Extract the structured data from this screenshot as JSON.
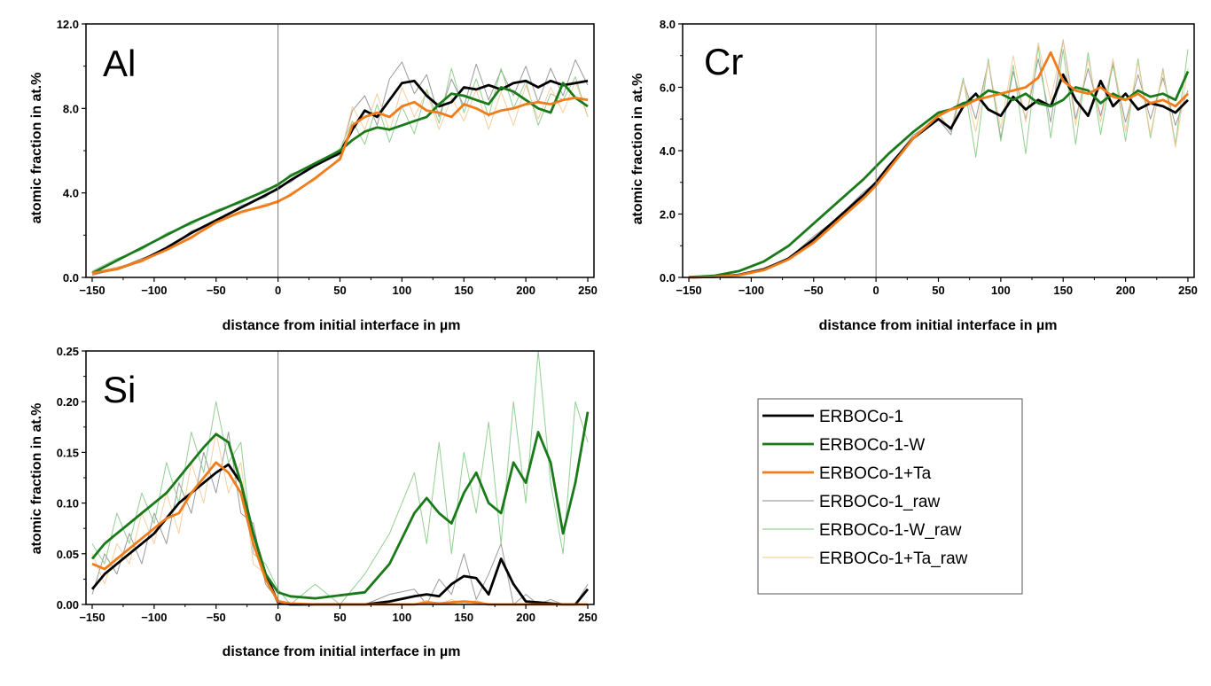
{
  "colors": {
    "ERBOCo-1": "#000000",
    "ERBOCo-1-W": "#1a7a1a",
    "ERBOCo-1+Ta": "#f07c1a",
    "ERBOCo-1_raw": "#888888",
    "ERBOCo-1-W_raw": "#7fc77f",
    "ERBOCo-1+Ta_raw": "#f7c690"
  },
  "legend": {
    "placement": "right-middle",
    "entries": [
      "ERBOCo-1",
      "ERBOCo-1-W",
      "ERBOCo-1+Ta",
      "ERBOCo-1_raw",
      "ERBOCo-1-W_raw",
      "ERBOCo-1+Ta_raw"
    ]
  },
  "chart_data": [
    {
      "type": "line",
      "title": "Al",
      "xlabel": "distance from initial interface in µm",
      "ylabel": "atomic fraction in at.%",
      "xlim": [
        -155,
        255
      ],
      "ylim": [
        0,
        12
      ],
      "x_ticks": [
        "−150",
        "−100",
        "−50",
        "0",
        "50",
        "100",
        "150",
        "200",
        "250"
      ],
      "x_tick_values": [
        -150,
        -100,
        -50,
        0,
        50,
        100,
        150,
        200,
        250
      ],
      "y_ticks": [
        "0.0",
        "4.0",
        "8.0",
        "12.0"
      ],
      "y_tick_values": [
        0,
        4,
        8,
        12
      ],
      "reference_line_x": 0,
      "grid": false,
      "x": [
        -150,
        -130,
        -110,
        -90,
        -70,
        -50,
        -30,
        -10,
        0,
        10,
        30,
        50,
        60,
        70,
        80,
        90,
        100,
        110,
        120,
        130,
        140,
        150,
        160,
        170,
        180,
        190,
        200,
        210,
        220,
        230,
        240,
        250
      ],
      "series": [
        {
          "name": "ERBOCo-1",
          "values": [
            0.2,
            0.4,
            0.8,
            1.4,
            2.1,
            2.7,
            3.3,
            3.9,
            4.2,
            4.6,
            5.3,
            5.9,
            7.0,
            7.9,
            7.6,
            8.4,
            9.2,
            9.3,
            8.6,
            8.1,
            8.3,
            9.0,
            8.9,
            9.1,
            8.9,
            9.2,
            9.3,
            9.0,
            9.3,
            9.1,
            9.2,
            9.3
          ]
        },
        {
          "name": "ERBOCo-1-W",
          "values": [
            0.2,
            0.8,
            1.4,
            2.0,
            2.6,
            3.1,
            3.6,
            4.1,
            4.4,
            4.8,
            5.4,
            6.0,
            6.5,
            6.9,
            7.1,
            7.0,
            7.2,
            7.4,
            7.6,
            8.2,
            8.7,
            8.6,
            8.4,
            8.2,
            9.0,
            8.8,
            8.4,
            8.0,
            7.8,
            9.2,
            8.5,
            8.1
          ]
        },
        {
          "name": "ERBOCo-1+Ta",
          "values": [
            0.2,
            0.4,
            0.8,
            1.3,
            1.9,
            2.6,
            3.1,
            3.4,
            3.6,
            3.9,
            4.7,
            5.6,
            7.2,
            7.6,
            7.8,
            7.6,
            8.1,
            8.3,
            7.9,
            7.8,
            7.6,
            8.2,
            8.0,
            7.7,
            7.9,
            8.0,
            8.2,
            8.3,
            8.2,
            8.4,
            8.5,
            8.4
          ]
        },
        {
          "name": "ERBOCo-1_raw",
          "values": [
            0.1,
            0.4,
            0.9,
            1.3,
            2.2,
            2.6,
            3.4,
            3.8,
            4.3,
            4.5,
            5.4,
            5.8,
            7.9,
            8.6,
            7.2,
            9.4,
            10.2,
            8.7,
            9.6,
            7.6,
            9.4,
            8.1,
            10.1,
            8.4,
            9.8,
            8.6,
            10.0,
            8.3,
            9.9,
            8.6,
            10.3,
            9.1
          ]
        },
        {
          "name": "ERBOCo-1-W_raw",
          "values": [
            0.3,
            0.9,
            1.3,
            2.1,
            2.5,
            3.2,
            3.5,
            4.2,
            4.3,
            4.9,
            5.3,
            6.1,
            7.4,
            6.3,
            8.2,
            6.4,
            8.1,
            6.8,
            8.9,
            7.3,
            9.9,
            7.8,
            9.4,
            7.6,
            9.9,
            8.0,
            9.3,
            7.2,
            8.7,
            8.4,
            9.5,
            7.6
          ]
        },
        {
          "name": "ERBOCo-1+Ta_raw",
          "values": [
            0.2,
            0.5,
            0.7,
            1.4,
            1.8,
            2.7,
            3.0,
            3.5,
            3.5,
            4.0,
            4.6,
            5.7,
            8.1,
            7.0,
            8.7,
            6.9,
            9.0,
            7.6,
            8.8,
            7.0,
            8.5,
            7.4,
            8.9,
            7.0,
            8.8,
            7.2,
            9.1,
            7.5,
            9.0,
            7.8,
            9.3,
            7.6
          ]
        }
      ]
    },
    {
      "type": "line",
      "title": "Cr",
      "xlabel": "distance from initial interface in µm",
      "ylabel": "atomic fraction in at.%",
      "xlim": [
        -155,
        255
      ],
      "ylim": [
        0,
        8
      ],
      "x_ticks": [
        "−150",
        "−100",
        "−50",
        "0",
        "50",
        "100",
        "150",
        "200",
        "250"
      ],
      "x_tick_values": [
        -150,
        -100,
        -50,
        0,
        50,
        100,
        150,
        200,
        250
      ],
      "y_ticks": [
        "0.0",
        "2.0",
        "4.0",
        "6.0",
        "8.0"
      ],
      "y_tick_values": [
        0,
        2,
        4,
        6,
        8
      ],
      "reference_line_x": 0,
      "grid": false,
      "x": [
        -150,
        -130,
        -110,
        -90,
        -70,
        -50,
        -30,
        -10,
        0,
        10,
        30,
        50,
        60,
        70,
        80,
        90,
        100,
        110,
        120,
        130,
        140,
        150,
        160,
        170,
        180,
        190,
        200,
        210,
        220,
        230,
        240,
        250
      ],
      "series": [
        {
          "name": "ERBOCo-1",
          "values": [
            0.0,
            0.02,
            0.08,
            0.25,
            0.6,
            1.2,
            1.9,
            2.6,
            3.0,
            3.5,
            4.4,
            5.0,
            4.7,
            5.4,
            5.8,
            5.3,
            5.1,
            5.7,
            5.3,
            5.6,
            5.4,
            6.4,
            5.6,
            5.1,
            6.2,
            5.4,
            5.8,
            5.3,
            5.5,
            5.4,
            5.2,
            5.6
          ]
        },
        {
          "name": "ERBOCo-1-W",
          "values": [
            0.01,
            0.05,
            0.2,
            0.5,
            1.0,
            1.7,
            2.4,
            3.1,
            3.5,
            3.9,
            4.6,
            5.2,
            5.3,
            5.5,
            5.6,
            5.9,
            5.8,
            5.6,
            5.8,
            5.5,
            5.4,
            5.6,
            6.0,
            5.9,
            5.5,
            5.8,
            5.6,
            5.9,
            5.7,
            5.8,
            5.6,
            6.5
          ]
        },
        {
          "name": "ERBOCo-1+Ta",
          "values": [
            0.0,
            0.02,
            0.07,
            0.23,
            0.57,
            1.1,
            1.8,
            2.5,
            2.9,
            3.4,
            4.4,
            5.1,
            5.3,
            5.4,
            5.6,
            5.7,
            5.8,
            5.9,
            6.0,
            6.3,
            7.1,
            6.2,
            5.9,
            5.8,
            6.0,
            5.7,
            5.6,
            5.8,
            5.5,
            5.6,
            5.4,
            5.8
          ]
        },
        {
          "name": "ERBOCo-1_raw",
          "values": [
            0.0,
            0.03,
            0.1,
            0.3,
            0.6,
            1.3,
            1.9,
            2.7,
            3.0,
            3.5,
            4.5,
            5.0,
            4.5,
            6.2,
            5.0,
            6.8,
            4.4,
            6.5,
            5.0,
            6.9,
            4.9,
            7.5,
            5.0,
            6.6,
            5.1,
            6.7,
            4.9,
            6.4,
            5.0,
            6.3,
            4.8,
            5.9
          ]
        },
        {
          "name": "ERBOCo-1-W_raw",
          "values": [
            0.01,
            0.06,
            0.2,
            0.5,
            1.0,
            1.7,
            2.4,
            3.1,
            3.5,
            3.9,
            4.6,
            5.2,
            4.6,
            6.3,
            3.8,
            6.9,
            4.3,
            6.7,
            3.9,
            7.3,
            4.4,
            7.2,
            4.2,
            7.1,
            4.5,
            6.8,
            4.3,
            6.9,
            4.4,
            6.6,
            4.2,
            7.2
          ]
        },
        {
          "name": "ERBOCo-1+Ta_raw",
          "values": [
            0.0,
            0.02,
            0.07,
            0.23,
            0.57,
            1.1,
            1.8,
            2.5,
            2.9,
            3.4,
            4.4,
            5.1,
            4.7,
            6.2,
            4.6,
            6.8,
            4.7,
            7.0,
            4.9,
            7.4,
            5.6,
            7.5,
            4.8,
            6.9,
            4.9,
            6.9,
            4.6,
            6.8,
            4.5,
            6.5,
            4.1,
            6.6
          ]
        }
      ]
    },
    {
      "type": "line",
      "title": "Si",
      "xlabel": "distance from initial interface in µm",
      "ylabel": "atomic fraction in at.%",
      "xlim": [
        -155,
        255
      ],
      "ylim": [
        0,
        0.25
      ],
      "x_ticks": [
        "−150",
        "−100",
        "−50",
        "0",
        "50",
        "100",
        "150",
        "200",
        "250"
      ],
      "x_tick_values": [
        -150,
        -100,
        -50,
        0,
        50,
        100,
        150,
        200,
        250
      ],
      "y_ticks": [
        "0.00",
        "0.05",
        "0.10",
        "0.15",
        "0.20",
        "0.25"
      ],
      "y_tick_values": [
        0,
        0.05,
        0.1,
        0.15,
        0.2,
        0.25
      ],
      "reference_line_x": 0,
      "grid": false,
      "x": [
        -150,
        -140,
        -130,
        -120,
        -110,
        -100,
        -90,
        -80,
        -70,
        -60,
        -50,
        -40,
        -30,
        -20,
        -10,
        0,
        10,
        30,
        50,
        70,
        90,
        110,
        120,
        130,
        140,
        150,
        160,
        170,
        180,
        190,
        200,
        210,
        220,
        230,
        240,
        250
      ],
      "series": [
        {
          "name": "ERBOCo-1",
          "values": [
            0.015,
            0.03,
            0.04,
            0.05,
            0.06,
            0.07,
            0.085,
            0.1,
            0.11,
            0.12,
            0.13,
            0.138,
            0.12,
            0.07,
            0.03,
            0.002,
            0.0,
            0.0,
            0.0,
            0.0,
            0.003,
            0.008,
            0.01,
            0.008,
            0.02,
            0.028,
            0.026,
            0.01,
            0.045,
            0.02,
            0.003,
            0.002,
            0.001,
            0.0,
            0.0,
            0.015
          ]
        },
        {
          "name": "ERBOCo-1-W",
          "values": [
            0.045,
            0.06,
            0.07,
            0.08,
            0.09,
            0.1,
            0.11,
            0.125,
            0.14,
            0.155,
            0.168,
            0.16,
            0.12,
            0.07,
            0.03,
            0.012,
            0.008,
            0.006,
            0.009,
            0.012,
            0.04,
            0.09,
            0.105,
            0.09,
            0.08,
            0.11,
            0.13,
            0.1,
            0.09,
            0.14,
            0.12,
            0.17,
            0.14,
            0.07,
            0.12,
            0.19
          ]
        },
        {
          "name": "ERBOCo-1+Ta",
          "values": [
            0.04,
            0.035,
            0.045,
            0.055,
            0.065,
            0.075,
            0.085,
            0.09,
            0.11,
            0.125,
            0.14,
            0.13,
            0.11,
            0.06,
            0.025,
            0.003,
            0.001,
            0.0,
            0.0,
            0.0,
            0.0,
            0.0,
            0.002,
            0.001,
            0.002,
            0.003,
            0.002,
            0.0,
            0.0,
            0.0,
            0.0,
            0.0,
            0.0,
            0.0,
            0.0,
            0.0
          ]
        },
        {
          "name": "ERBOCo-1_raw",
          "values": [
            0.01,
            0.05,
            0.03,
            0.07,
            0.04,
            0.09,
            0.06,
            0.12,
            0.09,
            0.15,
            0.11,
            0.17,
            0.09,
            0.08,
            0.02,
            0.004,
            0.0,
            0.0,
            0.0,
            0.0,
            0.01,
            0.015,
            0.0,
            0.025,
            0.01,
            0.05,
            0.005,
            0.03,
            0.06,
            0.0,
            0.01,
            0.0,
            0.005,
            0.0,
            0.0,
            0.02
          ]
        },
        {
          "name": "ERBOCo-1-W_raw",
          "values": [
            0.06,
            0.04,
            0.09,
            0.06,
            0.11,
            0.08,
            0.14,
            0.1,
            0.17,
            0.13,
            0.2,
            0.14,
            0.16,
            0.05,
            0.04,
            0.015,
            0.0,
            0.02,
            0.0,
            0.03,
            0.07,
            0.13,
            0.06,
            0.16,
            0.05,
            0.15,
            0.09,
            0.18,
            0.06,
            0.2,
            0.1,
            0.25,
            0.12,
            0.05,
            0.2,
            0.16
          ]
        },
        {
          "name": "ERBOCo-1+Ta_raw",
          "values": [
            0.05,
            0.02,
            0.06,
            0.04,
            0.09,
            0.06,
            0.11,
            0.07,
            0.14,
            0.1,
            0.17,
            0.11,
            0.14,
            0.04,
            0.03,
            0.005,
            0.0,
            0.0,
            0.0,
            0.0,
            0.0,
            0.0,
            0.004,
            0.0,
            0.005,
            0.0,
            0.004,
            0.0,
            0.0,
            0.0,
            0.0,
            0.0,
            0.0,
            0.0,
            0.0,
            0.0
          ]
        }
      ]
    }
  ]
}
